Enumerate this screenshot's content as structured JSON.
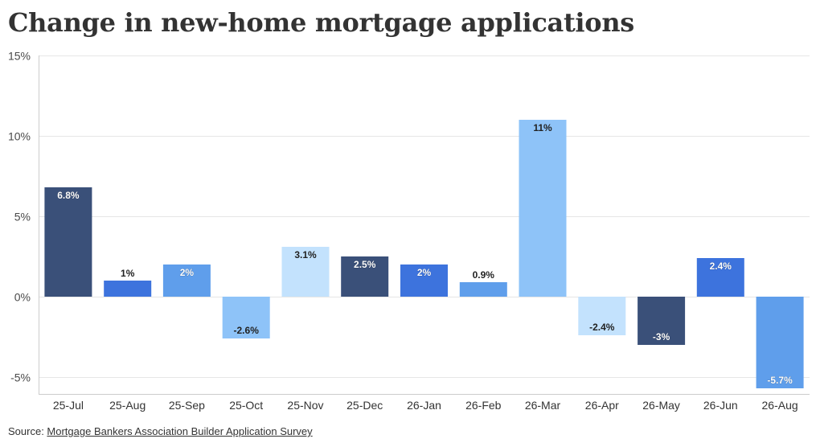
{
  "header": {
    "title": "Change in new-home mortgage applications"
  },
  "footer": {
    "source_prefix": "Source: ",
    "source_link_text": "Mortgage Bankers Association Builder Application Survey"
  },
  "colors": {
    "dark": "#3a5079",
    "blue": "#3d73dd",
    "mid": "#5f9eeb",
    "light": "#8ec3f8",
    "pale": "#c3e2fd",
    "grid": "#e6e6e6",
    "axis": "#cccccc"
  },
  "chart_data": {
    "type": "bar",
    "title": "Change in new-home mortgage applications",
    "xlabel": "",
    "ylabel": "",
    "ylim": [
      -6,
      15
    ],
    "yticks": [
      -5,
      0,
      5,
      10,
      15
    ],
    "ytick_labels": [
      "-5%",
      "0%",
      "5%",
      "10%",
      "15%"
    ],
    "grid": true,
    "legend": "none",
    "categories": [
      "25-Jul",
      "25-Aug",
      "25-Sep",
      "25-Oct",
      "25-Nov",
      "25-Dec",
      "26-Jan",
      "26-Feb",
      "26-Mar",
      "26-Apr",
      "26-May",
      "26-Jun",
      "26-Aug"
    ],
    "values": [
      6.8,
      1,
      2,
      -2.6,
      3.1,
      2.5,
      2,
      0.9,
      11,
      -2.4,
      -3,
      2.4,
      -5.7
    ],
    "data_labels": [
      "6.8%",
      "1%",
      "2%",
      "-2.6%",
      "3.1%",
      "2.5%",
      "2%",
      "0.9%",
      "11%",
      "-2.4%",
      "-3%",
      "2.4%",
      "-5.7%"
    ],
    "bar_colors": [
      "#3a5079",
      "#3d73dd",
      "#5f9eeb",
      "#8ec3f8",
      "#c3e2fd",
      "#3a5079",
      "#3d73dd",
      "#5f9eeb",
      "#8ec3f8",
      "#c3e2fd",
      "#3a5079",
      "#3d73dd",
      "#5f9eeb"
    ]
  }
}
